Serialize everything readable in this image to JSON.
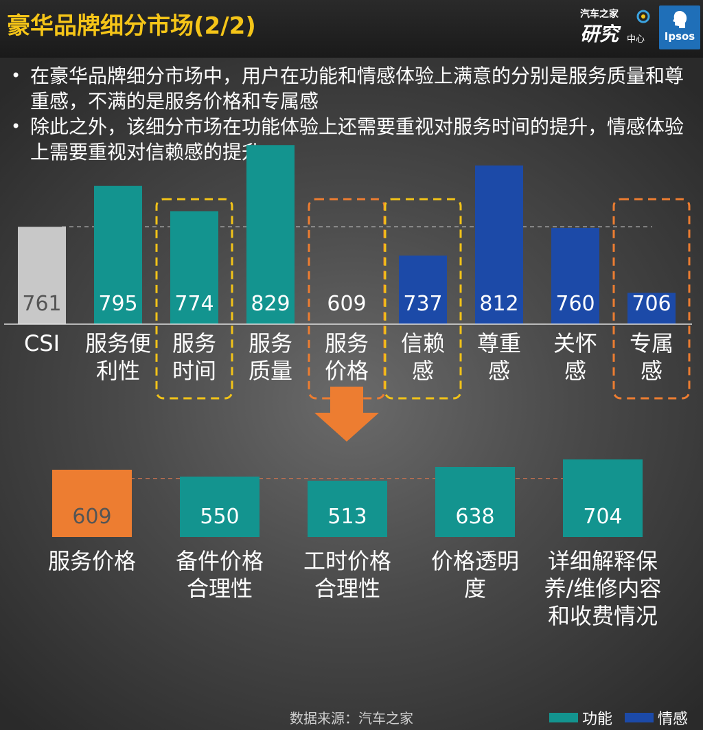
{
  "title": "豪华品牌细分市场(2/2)",
  "logos": {
    "autohome_line1": "汽车之家",
    "autohome_line2": "研究",
    "autohome_line3": "中心",
    "ipsos": "Ipsos"
  },
  "bullets": [
    "在豪华品牌细分市场中，用户在功能和情感体验上满意的分别是服务质量和尊重感，不满的是服务价格和专属感",
    "除此之外，该细分市场在功能体验上还需要重视对服务时间的提升，情感体验上需要重视对信赖感的提升"
  ],
  "colors": {
    "functional": "#13948f",
    "emotional": "#1c4aa8",
    "csi": "#c8c8c8",
    "highlight": "#ed7d31",
    "yellow_box": "#f2c318",
    "orange_box": "#ed7d31"
  },
  "chart_data": [
    {
      "type": "bar",
      "categories": [
        "CSI",
        "服务便\n利性",
        "服务\n时间",
        "服务\n质量",
        "服务\n价格",
        "信赖\n感",
        "尊重\n感",
        "关怀\n感",
        "专属\n感"
      ],
      "values": [
        761,
        795,
        774,
        829,
        609,
        737,
        812,
        760,
        706
      ],
      "group": [
        "csi",
        "functional",
        "functional",
        "functional",
        "functional",
        "emotional",
        "emotional",
        "emotional",
        "emotional"
      ],
      "highlight_yellow": [
        "服务\n时间",
        "信赖\n感"
      ],
      "highlight_orange": [
        "服务\n价格",
        "专属\n感"
      ],
      "reference_line": 761,
      "ylim": [
        0,
        840
      ],
      "legend": [
        "功能",
        "情感"
      ],
      "legend_placement": "bottom-right"
    },
    {
      "type": "bar",
      "categories": [
        "服务价格",
        "备件价格\n合理性",
        "工时价格\n合理性",
        "价格透明\n度",
        "详细解释保\n养/维修内容\n和收费情况"
      ],
      "values": [
        609,
        550,
        513,
        638,
        704
      ],
      "group": [
        "highlight",
        "functional",
        "functional",
        "functional",
        "functional"
      ],
      "reference_line": 609,
      "ylim": [
        0,
        720
      ]
    }
  ],
  "source": "数据来源：汽车之家"
}
